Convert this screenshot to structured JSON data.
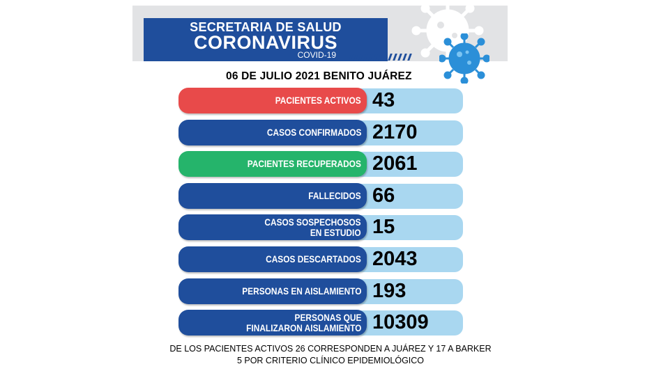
{
  "header": {
    "org": "SECRETARIA DE SALUD",
    "title": "CORONAVIRUS",
    "subtitle": "COVID-19",
    "date_location": "06 DE JULIO 2021 BENITO JUÁREZ"
  },
  "colors": {
    "header_blue": "#1f4e9c",
    "label_blue": "#1f4e9c",
    "label_red": "#e84a4a",
    "label_green": "#25b46b",
    "value_bg": "#a9d7f0",
    "virus_blue": "#2b8fd8",
    "virus_gray": "#ffffff"
  },
  "stats": [
    {
      "label_line1": "PACIENTES ACTIVOS",
      "label_line2": "",
      "value": "43",
      "color": "#e84a4a"
    },
    {
      "label_line1": "CASOS CONFIRMADOS",
      "label_line2": "",
      "value": "2170",
      "color": "#1f4e9c"
    },
    {
      "label_line1": "PACIENTES RECUPERADOS",
      "label_line2": "",
      "value": "2061",
      "color": "#25b46b"
    },
    {
      "label_line1": "FALLECIDOS",
      "label_line2": "",
      "value": "66",
      "color": "#1f4e9c"
    },
    {
      "label_line1": "CASOS SOSPECHOSOS",
      "label_line2": "EN ESTUDIO",
      "value": "15",
      "color": "#1f4e9c"
    },
    {
      "label_line1": "CASOS DESCARTADOS",
      "label_line2": "",
      "value": "2043",
      "color": "#1f4e9c"
    },
    {
      "label_line1": "PERSONAS EN AISLAMIENTO",
      "label_line2": "",
      "value": "193",
      "color": "#1f4e9c"
    },
    {
      "label_line1": "PERSONAS QUE",
      "label_line2": "FINALIZARON AISLAMIENTO",
      "value": "10309",
      "color": "#1f4e9c"
    }
  ],
  "footer": {
    "line1": "DE LOS PACIENTES ACTIVOS  26 CORRESPONDEN A JUÁREZ Y 17 A BARKER",
    "line2": "5 POR CRITERIO CLÍNICO EPIDEMIOLÓGICO"
  },
  "icons": [
    "virus-gray-icon",
    "virus-blue-icon"
  ]
}
